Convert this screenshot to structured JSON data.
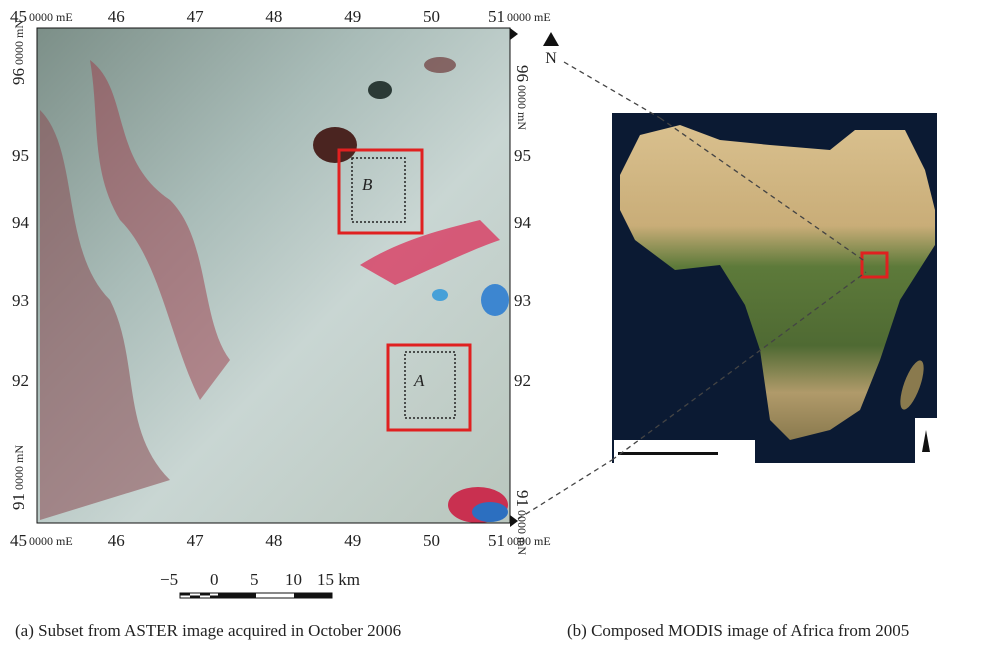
{
  "panel_a": {
    "easting_labels": [
      "45",
      "46",
      "47",
      "48",
      "49",
      "50",
      "51"
    ],
    "easting_unit": "0000 mE",
    "northing_labels": [
      "96",
      "95",
      "94",
      "93",
      "92",
      "91"
    ],
    "northing_unit": "0000 mN",
    "site_labels": [
      "A",
      "B"
    ],
    "north_label": "N",
    "scale_labels": [
      "−5",
      "0",
      "5",
      "10",
      "15 km"
    ],
    "caption": "(a) Subset from ASTER image acquired in October 2006"
  },
  "panel_b": {
    "caption": "(b) Composed MODIS image of Africa from 2005"
  }
}
